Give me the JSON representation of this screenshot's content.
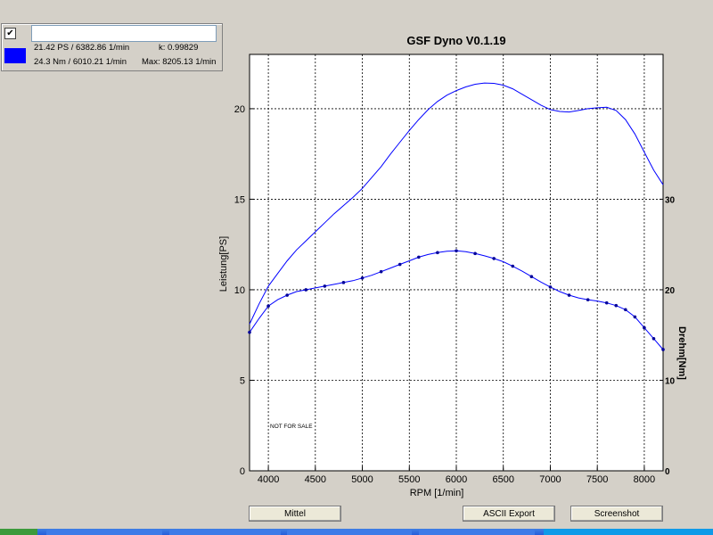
{
  "legend": {
    "checkbox_mark": "✔",
    "power_line": "21.42 PS / 6382.86 1/min",
    "k_line": "k: 0.99829",
    "torque_line": "24.3 Nm / 6010.21 1/min",
    "max_line": "Max: 8205.13 1/min",
    "series_color": "#0000ff"
  },
  "buttons": {
    "mittel": "Mittel",
    "ascii_export": "ASCII Export",
    "screenshot": "Screenshot"
  },
  "chart_data": {
    "type": "line",
    "title": "GSF Dyno V0.1.19",
    "xlabel": "RPM [1/min]",
    "ylabel": "Leistung[PS]",
    "ylabel_right": "Drehm[Nm]",
    "annotation": "NOT FOR SALE",
    "xlim": [
      3800,
      8200
    ],
    "ylim": [
      0,
      23
    ],
    "ylim_right": [
      0,
      46
    ],
    "x_ticks": [
      4000,
      4500,
      5000,
      5500,
      6000,
      6500,
      7000,
      7500,
      8000
    ],
    "y_ticks": [
      0,
      5,
      10,
      15,
      20
    ],
    "y_ticks_right": [
      0,
      10,
      20,
      30
    ],
    "grid": true,
    "color": "#0000ff",
    "series": [
      {
        "axis": "left",
        "markers": false,
        "x": [
          3800,
          3900,
          4000,
          4100,
          4200,
          4300,
          4400,
          4500,
          4600,
          4700,
          4800,
          4900,
          5000,
          5100,
          5200,
          5300,
          5400,
          5500,
          5600,
          5700,
          5800,
          5900,
          6000,
          6100,
          6200,
          6300,
          6400,
          6500,
          6600,
          6700,
          6800,
          6900,
          7000,
          7100,
          7200,
          7300,
          7400,
          7500,
          7600,
          7700,
          7800,
          7900,
          8000,
          8100,
          8200
        ],
        "y": [
          8.1,
          9.2,
          10.2,
          10.9,
          11.6,
          12.2,
          12.7,
          13.2,
          13.7,
          14.2,
          14.65,
          15.1,
          15.6,
          16.2,
          16.8,
          17.5,
          18.15,
          18.8,
          19.4,
          19.95,
          20.4,
          20.75,
          21.0,
          21.2,
          21.35,
          21.42,
          21.4,
          21.3,
          21.1,
          20.8,
          20.5,
          20.2,
          19.95,
          19.85,
          19.82,
          19.9,
          20.0,
          20.05,
          20.08,
          19.9,
          19.4,
          18.6,
          17.6,
          16.6,
          15.8
        ]
      },
      {
        "axis": "right",
        "markers": true,
        "x": [
          3800,
          3900,
          4000,
          4100,
          4200,
          4300,
          4400,
          4500,
          4600,
          4700,
          4800,
          4900,
          5000,
          5100,
          5200,
          5300,
          5400,
          5500,
          5600,
          5700,
          5800,
          5900,
          6000,
          6100,
          6200,
          6300,
          6400,
          6500,
          6600,
          6700,
          6800,
          6900,
          7000,
          7100,
          7200,
          7300,
          7400,
          7500,
          7600,
          7700,
          7800,
          7900,
          8000,
          8100,
          8200
        ],
        "y": [
          15.3,
          16.8,
          18.2,
          18.9,
          19.4,
          19.8,
          20.0,
          20.2,
          20.4,
          20.6,
          20.8,
          21.0,
          21.3,
          21.6,
          22.0,
          22.4,
          22.8,
          23.2,
          23.6,
          23.9,
          24.1,
          24.25,
          24.3,
          24.2,
          24.0,
          23.75,
          23.45,
          23.1,
          22.6,
          22.05,
          21.45,
          20.85,
          20.3,
          19.8,
          19.4,
          19.1,
          18.9,
          18.75,
          18.55,
          18.25,
          17.8,
          17.0,
          15.8,
          14.6,
          13.4
        ]
      }
    ]
  }
}
